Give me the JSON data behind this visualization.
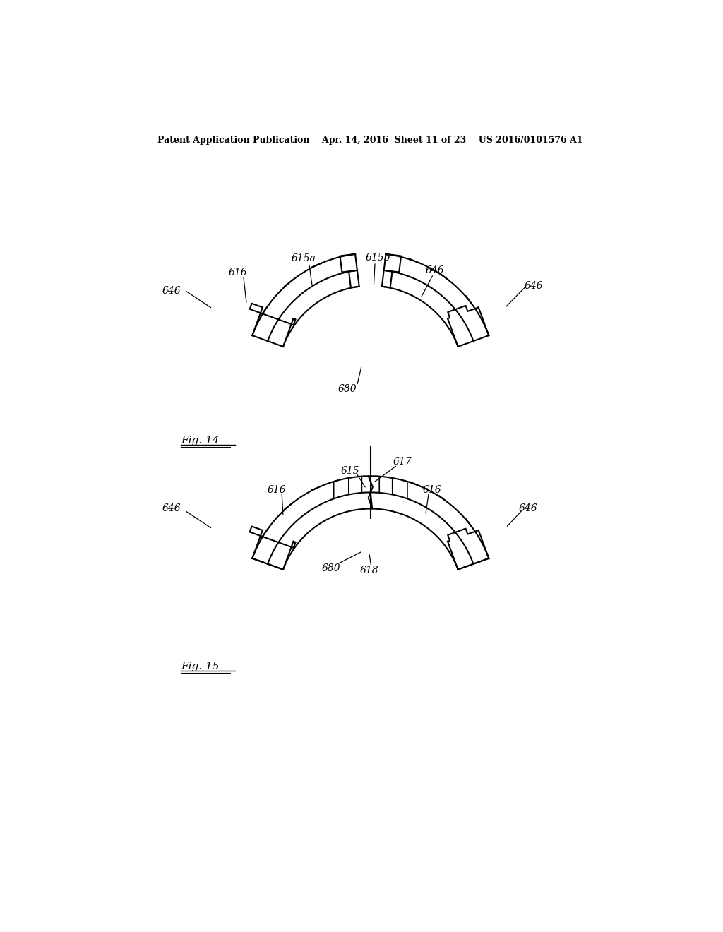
{
  "bg_color": "#ffffff",
  "line_color": "#000000",
  "header_text": "Patent Application Publication    Apr. 14, 2016  Sheet 11 of 23    US 2016/0101576 A1",
  "fig14_label": "Fig. 14",
  "fig15_label": "Fig. 15"
}
